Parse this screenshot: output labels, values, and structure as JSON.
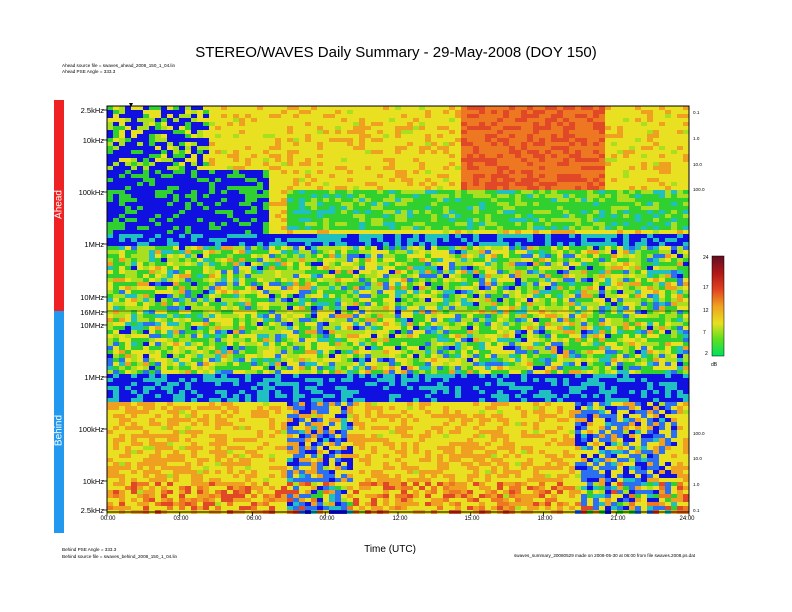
{
  "title": "STEREO/WAVES Daily Summary - 29-May-2008 (DOY 150)",
  "header_notes": [
    "Ahead source file = swaves_ahead_2008_150_1_04.lin",
    "Ahead PSE Angle = 333.3"
  ],
  "footer_notes": [
    "Behind PSE Angle = 333.3",
    "Behind source file = swaves_behind_2008_150_1_04.lin"
  ],
  "footer_right": "swaves_summary_20080529 made on 2008-05-30 at 06:00 from file swaves.2008.ps.dat",
  "colors": {
    "ahead_band": "#ee2222",
    "behind_band": "#2299ee",
    "low": "#1010e0",
    "mid": "#30d030",
    "high": "#ee7722",
    "peak": "#d83030"
  },
  "chart_data": {
    "type": "heatmap",
    "title": "STEREO/WAVES Daily Summary - 29-May-2008 (DOY 150)",
    "xlabel": "Time (UTC)",
    "x_ticks": [
      "00:00",
      "03:00",
      "06:00",
      "09:00",
      "12:00",
      "15:00",
      "18:00",
      "21:00",
      "24:00"
    ],
    "xlim": [
      0,
      24
    ],
    "panels": [
      {
        "name": "Ahead",
        "y_ticks": [
          "2.5kHz",
          "10kHz",
          "100kHz",
          "1MHz",
          "10MHz",
          "16MHz"
        ],
        "right_ticks": [
          "0.1",
          "1.0",
          "10.0",
          "100.0"
        ]
      },
      {
        "name": "Behind",
        "y_ticks": [
          "10MHz",
          "1MHz",
          "100kHz",
          "10kHz",
          "2.5kHz"
        ],
        "right_ticks": [
          "100.0",
          "10.0",
          "1.0",
          "0.1"
        ]
      }
    ],
    "colorbar": {
      "label": "dB",
      "ticks": [
        "24",
        "17",
        "12",
        "7",
        "2"
      ],
      "range": [
        2,
        24
      ]
    }
  }
}
